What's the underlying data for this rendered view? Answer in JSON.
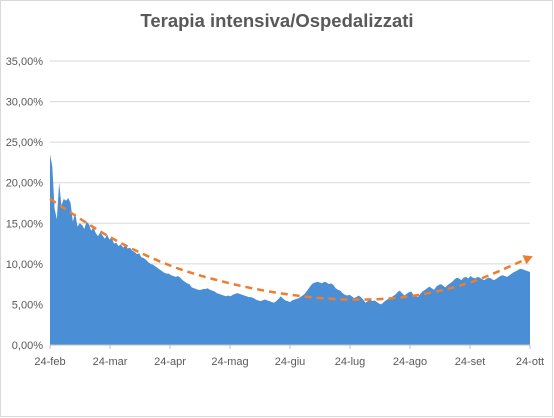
{
  "chart_data": {
    "type": "area",
    "title": "Terapia intensiva/Ospedalizzati",
    "xlabel": "",
    "ylabel": "",
    "x_start": "24-feb",
    "x_ticks": [
      "24-feb",
      "24-mar",
      "24-apr",
      "24-mag",
      "24-giu",
      "24-lug",
      "24-ago",
      "24-set",
      "24-ott"
    ],
    "y_ticks": [
      "0,00%",
      "5,00%",
      "10,00%",
      "15,00%",
      "20,00%",
      "25,00%",
      "30,00%",
      "35,00%"
    ],
    "ylim": [
      0,
      35
    ],
    "grid": true,
    "legend": "none",
    "area_color": "#4a8fd6",
    "trend_color": "#ed7d31",
    "series": [
      {
        "values": [
          23.5,
          22.0,
          16.8,
          15.5,
          20.0,
          17.2,
          18.0,
          17.8,
          18.1,
          17.5,
          15.2,
          16.3,
          14.6,
          15.0,
          14.8,
          14.3,
          15.2,
          14.9,
          14.1,
          14.5,
          13.8,
          13.4,
          13.9,
          13.5,
          13.1,
          13.6,
          13.0,
          13.2,
          12.5,
          12.6,
          12.2,
          12.4,
          12.0,
          12.3,
          11.9,
          12.0,
          11.6,
          11.5,
          11.2,
          11.3,
          10.8,
          10.7,
          10.5,
          10.2,
          10.0,
          9.9,
          9.7,
          9.5,
          9.3,
          9.1,
          8.9,
          8.8,
          8.8,
          8.6,
          8.5,
          8.4,
          8.5,
          8.3,
          8.0,
          7.8,
          7.6,
          7.5,
          7.1,
          7.0,
          6.9,
          6.8,
          6.8,
          6.9,
          6.9,
          7.0,
          6.8,
          6.7,
          6.6,
          6.4,
          6.3,
          6.2,
          6.1,
          6.0,
          6.1,
          6.0,
          6.2,
          6.3,
          6.4,
          6.3,
          6.2,
          6.1,
          6.0,
          5.9,
          5.9,
          5.8,
          5.6,
          5.5,
          5.4,
          5.5,
          5.6,
          5.5,
          5.4,
          5.3,
          5.2,
          5.4,
          5.7,
          6.0,
          5.7,
          5.5,
          5.4,
          5.3,
          5.5,
          5.6,
          5.7,
          5.8,
          6.0,
          6.2,
          6.5,
          6.9,
          7.3,
          7.6,
          7.7,
          7.8,
          7.7,
          7.6,
          7.8,
          7.7,
          7.5,
          7.6,
          7.4,
          7.0,
          6.8,
          6.7,
          6.4,
          6.2,
          6.1,
          6.2,
          6.0,
          5.8,
          5.9,
          6.1,
          5.9,
          5.6,
          5.2,
          5.4,
          5.6,
          5.4,
          5.5,
          5.3,
          5.1,
          5.0,
          5.3,
          5.5,
          5.7,
          5.8,
          6.0,
          6.2,
          6.5,
          6.7,
          6.4,
          6.1,
          6.3,
          6.5,
          6.6,
          6.2,
          6.0,
          5.9,
          6.3,
          6.6,
          6.8,
          7.0,
          7.2,
          7.0,
          6.8,
          7.2,
          7.4,
          7.5,
          7.3,
          7.1,
          7.4,
          7.6,
          7.8,
          8.1,
          8.3,
          8.2,
          8.0,
          8.3,
          8.4,
          8.2,
          8.5,
          8.3,
          8.2,
          8.4,
          8.3,
          8.1,
          8.0,
          8.2,
          8.3,
          8.2,
          8.0,
          8.1,
          8.3,
          8.5,
          8.6,
          8.5,
          8.4,
          8.6,
          8.8,
          9.0,
          9.1,
          9.3,
          9.4,
          9.3,
          9.2,
          9.1,
          9.0
        ]
      }
    ],
    "trendline": {
      "type": "polynomial",
      "values": [
        18.0,
        13.3,
        9.8,
        7.6,
        6.2,
        5.6,
        6.0,
        7.7,
        10.8
      ]
    }
  }
}
